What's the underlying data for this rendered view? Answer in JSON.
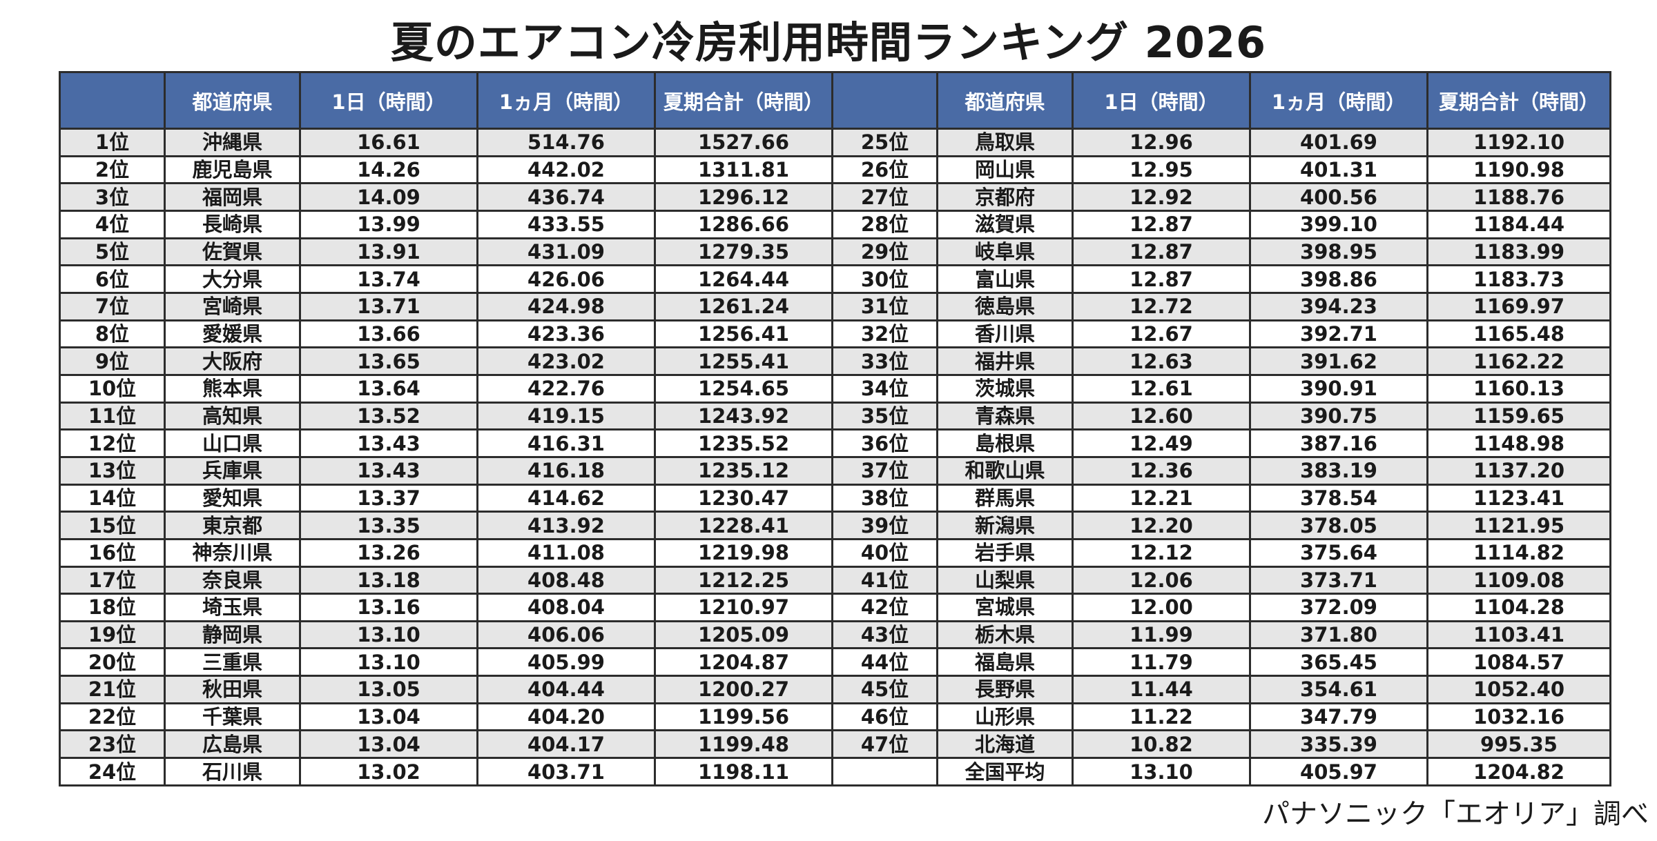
{
  "title": "夏のエアコン冷房利用時間ランキング 2026",
  "source": "パナソニック「エオリア」調べ",
  "columns": [
    "",
    "都道府県",
    "1日（時間）",
    "1ヵ月（時間）",
    "夏期合計（時間）",
    "",
    "都道府県",
    "1日（時間）",
    "1ヵ月（時間）",
    "夏期合計（時間）"
  ],
  "rows": [
    [
      [
        "1位",
        "沖縄県",
        "16.61",
        "514.76",
        "1527.66"
      ],
      [
        "25位",
        "鳥取県",
        "12.96",
        "401.69",
        "1192.10"
      ]
    ],
    [
      [
        "2位",
        "鹿児島県",
        "14.26",
        "442.02",
        "1311.81"
      ],
      [
        "26位",
        "岡山県",
        "12.95",
        "401.31",
        "1190.98"
      ]
    ],
    [
      [
        "3位",
        "福岡県",
        "14.09",
        "436.74",
        "1296.12"
      ],
      [
        "27位",
        "京都府",
        "12.92",
        "400.56",
        "1188.76"
      ]
    ],
    [
      [
        "4位",
        "長崎県",
        "13.99",
        "433.55",
        "1286.66"
      ],
      [
        "28位",
        "滋賀県",
        "12.87",
        "399.10",
        "1184.44"
      ]
    ],
    [
      [
        "5位",
        "佐賀県",
        "13.91",
        "431.09",
        "1279.35"
      ],
      [
        "29位",
        "岐阜県",
        "12.87",
        "398.95",
        "1183.99"
      ]
    ],
    [
      [
        "6位",
        "大分県",
        "13.74",
        "426.06",
        "1264.44"
      ],
      [
        "30位",
        "富山県",
        "12.87",
        "398.86",
        "1183.73"
      ]
    ],
    [
      [
        "7位",
        "宮崎県",
        "13.71",
        "424.98",
        "1261.24"
      ],
      [
        "31位",
        "徳島県",
        "12.72",
        "394.23",
        "1169.97"
      ]
    ],
    [
      [
        "8位",
        "愛媛県",
        "13.66",
        "423.36",
        "1256.41"
      ],
      [
        "32位",
        "香川県",
        "12.67",
        "392.71",
        "1165.48"
      ]
    ],
    [
      [
        "9位",
        "大阪府",
        "13.65",
        "423.02",
        "1255.41"
      ],
      [
        "33位",
        "福井県",
        "12.63",
        "391.62",
        "1162.22"
      ]
    ],
    [
      [
        "10位",
        "熊本県",
        "13.64",
        "422.76",
        "1254.65"
      ],
      [
        "34位",
        "茨城県",
        "12.61",
        "390.91",
        "1160.13"
      ]
    ],
    [
      [
        "11位",
        "高知県",
        "13.52",
        "419.15",
        "1243.92"
      ],
      [
        "35位",
        "青森県",
        "12.60",
        "390.75",
        "1159.65"
      ]
    ],
    [
      [
        "12位",
        "山口県",
        "13.43",
        "416.31",
        "1235.52"
      ],
      [
        "36位",
        "島根県",
        "12.49",
        "387.16",
        "1148.98"
      ]
    ],
    [
      [
        "13位",
        "兵庫県",
        "13.43",
        "416.18",
        "1235.12"
      ],
      [
        "37位",
        "和歌山県",
        "12.36",
        "383.19",
        "1137.20"
      ]
    ],
    [
      [
        "14位",
        "愛知県",
        "13.37",
        "414.62",
        "1230.47"
      ],
      [
        "38位",
        "群馬県",
        "12.21",
        "378.54",
        "1123.41"
      ]
    ],
    [
      [
        "15位",
        "東京都",
        "13.35",
        "413.92",
        "1228.41"
      ],
      [
        "39位",
        "新潟県",
        "12.20",
        "378.05",
        "1121.95"
      ]
    ],
    [
      [
        "16位",
        "神奈川県",
        "13.26",
        "411.08",
        "1219.98"
      ],
      [
        "40位",
        "岩手県",
        "12.12",
        "375.64",
        "1114.82"
      ]
    ],
    [
      [
        "17位",
        "奈良県",
        "13.18",
        "408.48",
        "1212.25"
      ],
      [
        "41位",
        "山梨県",
        "12.06",
        "373.71",
        "1109.08"
      ]
    ],
    [
      [
        "18位",
        "埼玉県",
        "13.16",
        "408.04",
        "1210.97"
      ],
      [
        "42位",
        "宮城県",
        "12.00",
        "372.09",
        "1104.28"
      ]
    ],
    [
      [
        "19位",
        "静岡県",
        "13.10",
        "406.06",
        "1205.09"
      ],
      [
        "43位",
        "栃木県",
        "11.99",
        "371.80",
        "1103.41"
      ]
    ],
    [
      [
        "20位",
        "三重県",
        "13.10",
        "405.99",
        "1204.87"
      ],
      [
        "44位",
        "福島県",
        "11.79",
        "365.45",
        "1084.57"
      ]
    ],
    [
      [
        "21位",
        "秋田県",
        "13.05",
        "404.44",
        "1200.27"
      ],
      [
        "45位",
        "長野県",
        "11.44",
        "354.61",
        "1052.40"
      ]
    ],
    [
      [
        "22位",
        "千葉県",
        "13.04",
        "404.20",
        "1199.56"
      ],
      [
        "46位",
        "山形県",
        "11.22",
        "347.79",
        "1032.16"
      ]
    ],
    [
      [
        "23位",
        "広島県",
        "13.04",
        "404.17",
        "1199.48"
      ],
      [
        "47位",
        "北海道",
        "10.82",
        "335.39",
        "995.35"
      ]
    ],
    [
      [
        "24位",
        "石川県",
        "13.02",
        "403.71",
        "1198.11"
      ],
      [
        "",
        "全国平均",
        "13.10",
        "405.97",
        "1204.82"
      ]
    ]
  ]
}
